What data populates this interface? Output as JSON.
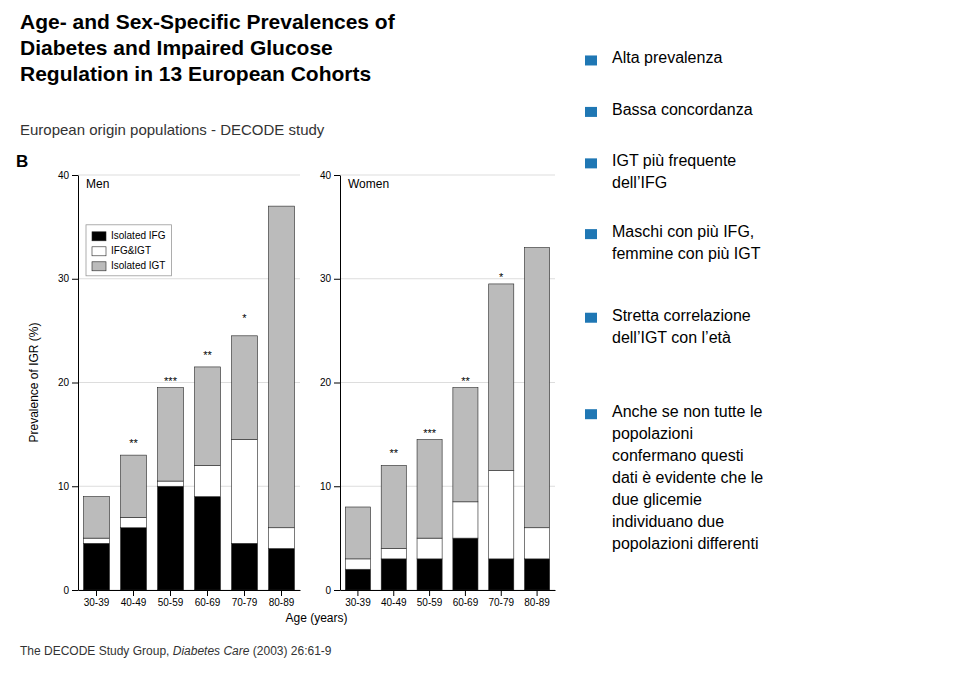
{
  "chart_data": [
    {
      "type": "bar",
      "stacked": true,
      "title": "Age- and Sex-Specific Prevalences of\nDiabetes and Impaired Glucose\nRegulation in 13 European Cohorts",
      "subtitle": "European origin populations - DECODE study",
      "footer": [
        "The DECODE Study Group, ",
        "Diabetes Care",
        " (2003) 26:61-9"
      ],
      "notes": [
        "Alta prevalenza",
        "Bassa concordanza",
        "IGT più frequente\ndell’IFG",
        "Maschi con più IFG,\nfemmine con più IGT",
        "Stretta correlazione\ndell’IGT con l’età",
        "Anche se non tutte le\npopolazioni\nconfermano questi\ndati è evidente che le\ndue glicemie\nindividuano due\npopolazioni differenti"
      ],
      "panel_label": "B",
      "panel_title": "Men",
      "categories": [
        "30-39",
        "40-49",
        "50-59",
        "60-69",
        "70-79",
        "80-89"
      ],
      "series": [
        {
          "name": "Isolated IFG",
          "color": "#000000",
          "values": [
            4.5,
            6.0,
            10.0,
            9.0,
            4.5,
            4.0
          ]
        },
        {
          "name": "IFG&IGT",
          "color": "#ffffff",
          "values": [
            0.5,
            1.0,
            0.5,
            3.0,
            10.0,
            2.0
          ]
        },
        {
          "name": "Isolated IGT",
          "color": "#bbbbbb",
          "values": [
            4.0,
            6.0,
            9.0,
            9.5,
            10.0,
            31.0
          ]
        }
      ],
      "ylim": [
        0,
        40
      ],
      "yticks": [
        0,
        10,
        20,
        30,
        40
      ],
      "ylabel": "Prevalence of IGR (%)",
      "xlabel": "Age (years)",
      "grid": true,
      "legend": "upper left",
      "annotations": [
        {
          "x": "40-49",
          "y": 13.5,
          "text": "**"
        },
        {
          "x": "50-59",
          "y": 19.5,
          "text": "***"
        },
        {
          "x": "60-69",
          "y": 22.0,
          "text": "**"
        },
        {
          "x": "70-79",
          "y": 25.5,
          "text": "*"
        }
      ]
    },
    {
      "type": "bar",
      "stacked": true,
      "panel_title": "Women",
      "categories": [
        "30-39",
        "40-49",
        "50-59",
        "60-69",
        "70-79",
        "80-89"
      ],
      "series": [
        {
          "name": "Isolated IFG",
          "color": "#000000",
          "values": [
            2.0,
            3.0,
            3.0,
            5.0,
            3.0,
            3.0
          ]
        },
        {
          "name": "IFG&IGT",
          "color": "#ffffff",
          "values": [
            1.0,
            1.0,
            2.0,
            3.5,
            8.5,
            3.0
          ]
        },
        {
          "name": "Isolated IGT",
          "color": "#bbbbbb",
          "values": [
            5.0,
            8.0,
            9.5,
            11.0,
            18.0,
            27.0
          ]
        }
      ],
      "ylim": [
        0,
        40
      ],
      "yticks": [
        0,
        10,
        20,
        30,
        40
      ],
      "grid": true,
      "annotations": [
        {
          "x": "40-49",
          "y": 12.5,
          "text": "**"
        },
        {
          "x": "50-59",
          "y": 14.5,
          "text": "***"
        },
        {
          "x": "60-69",
          "y": 19.5,
          "text": "**"
        },
        {
          "x": "70-79",
          "y": 29.5,
          "text": "*"
        }
      ]
    }
  ]
}
